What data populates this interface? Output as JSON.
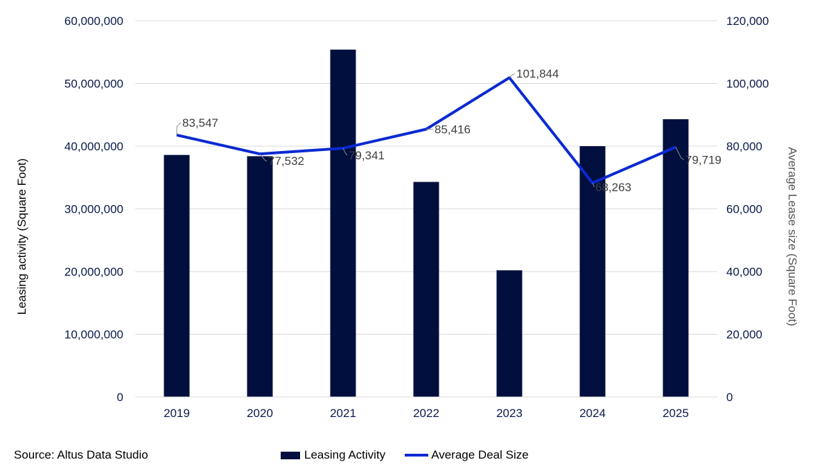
{
  "chart_data": {
    "type": "bar",
    "categories": [
      "2019",
      "2020",
      "2021",
      "2022",
      "2023",
      "2024",
      "2025"
    ],
    "series": [
      {
        "name": "Leasing Activity",
        "type": "bar",
        "axis": "left",
        "color": "#000f3d",
        "values": [
          38600000,
          38400000,
          55400000,
          34300000,
          20200000,
          40000000,
          44300000
        ]
      },
      {
        "name": "Average Deal Size",
        "type": "line",
        "axis": "right",
        "color": "#0a2ad1",
        "values": [
          83547,
          77532,
          79341,
          85416,
          101844,
          68263,
          79719
        ],
        "labels": [
          "83,547",
          "77,532",
          "79,341",
          "85,416",
          "101,844",
          "68,263",
          "79,719"
        ]
      }
    ],
    "left_axis": {
      "title": "Leasing activity (Square Foot)",
      "ylim": [
        0,
        60000000
      ],
      "ticks": [
        "0",
        "10,000,000",
        "20,000,000",
        "30,000,000",
        "40,000,000",
        "50,000,000",
        "60,000,000"
      ]
    },
    "right_axis": {
      "title": "Average Lease size (Square Foot)",
      "ylim": [
        0,
        120000
      ],
      "ticks": [
        "0",
        "20,000",
        "40,000",
        "60,000",
        "80,000",
        "100,000",
        "120,000"
      ]
    },
    "grid": true,
    "legend_position": "bottom-center"
  },
  "source": "Source: Altus Data Studio"
}
